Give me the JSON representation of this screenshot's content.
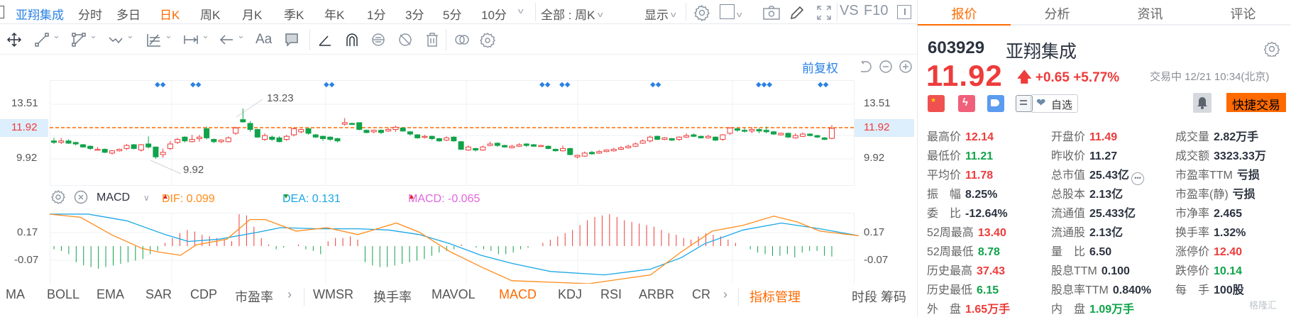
{
  "toolbar": {
    "stock_name": "亚翔集成",
    "periods": [
      "分时",
      "多日",
      "日K",
      "周K",
      "月K",
      "季K",
      "年K",
      "1分",
      "3分",
      "5分",
      "10分"
    ],
    "active_period": "日K",
    "range_selector": "全部 : 周K",
    "display_label": "显示",
    "vs_label": "VS",
    "f10_label": "F10"
  },
  "drawing_tools": [
    "move",
    "line-segment",
    "polyline",
    "wave",
    "fib-box",
    "range-measure",
    "arrow",
    "text",
    "comment",
    "angle",
    "arch",
    "sync",
    "hide",
    "delete",
    "compare",
    "settings"
  ],
  "chart": {
    "adjust_label": "前复权",
    "price_axis": {
      "top": "13.51",
      "current": "11.92",
      "bottom": "9.92"
    },
    "annotations": {
      "high": "13.23",
      "low": "9.92"
    },
    "current_price_color": "#ff6a00",
    "up_color": "#ee3b3b",
    "down_color": "#10a34a",
    "macd": {
      "name": "MACD",
      "dif_label": "DIF: 0.099",
      "dea_label": "DEA: 0.131",
      "macd_label": "MACD: -0.065",
      "axis": {
        "top": "0.17",
        "bottom": "-0.07"
      },
      "dif_color": "#ff8c1a",
      "dea_color": "#1aa7e6",
      "macd_color": "#e066dd"
    }
  },
  "indicators": {
    "main": [
      "MA",
      "BOLL",
      "EMA",
      "SAR",
      "CDP",
      "市盈率"
    ],
    "sub": [
      "WMSR",
      "换手率",
      "MAVOL",
      "MACD",
      "KDJ",
      "RSI",
      "ARBR",
      "CR"
    ],
    "active": "MACD",
    "manage_label": "指标管理",
    "extra": "时段 筹码"
  },
  "panel": {
    "tabs": [
      "报价",
      "分析",
      "资讯",
      "评论"
    ],
    "active_tab": "报价",
    "code": "603929",
    "name": "亚翔集成",
    "price": "11.92",
    "change": "+0.65 +5.77%",
    "status": "交易中 12/21 10:34(北京)",
    "watch_label": "自选",
    "quick_trade_label": "快捷交易",
    "quotes": [
      [
        {
          "label": "最高价",
          "value": "12.14",
          "color": "red"
        },
        {
          "label": "开盘价",
          "value": "11.49",
          "color": "red"
        },
        {
          "label": "成交量",
          "value": "2.82万手",
          "color": "dark"
        }
      ],
      [
        {
          "label": "最低价",
          "value": "11.21",
          "color": "green"
        },
        {
          "label": "昨收价",
          "value": "11.27",
          "color": "dark"
        },
        {
          "label": "成交额",
          "value": "3323.33万",
          "color": "dark"
        }
      ],
      [
        {
          "label": "平均价",
          "value": "11.78",
          "color": "red"
        },
        {
          "label": "总市值",
          "value": "25.43亿",
          "color": "dark"
        },
        {
          "label": "市盈率TTM",
          "value": "亏损",
          "color": "dark"
        }
      ],
      [
        {
          "label": "振　幅",
          "value": "8.25%",
          "color": "dark"
        },
        {
          "label": "总股本",
          "value": "2.13亿",
          "color": "dark"
        },
        {
          "label": "市盈率(静)",
          "value": "亏损",
          "color": "dark"
        }
      ],
      [
        {
          "label": "委　比",
          "value": "-12.64%",
          "color": "dark"
        },
        {
          "label": "流通值",
          "value": "25.433亿",
          "color": "dark"
        },
        {
          "label": "市净率",
          "value": "2.465",
          "color": "dark"
        }
      ],
      [
        {
          "label": "52周最高",
          "value": "13.40",
          "color": "red"
        },
        {
          "label": "流通股",
          "value": "2.13亿",
          "color": "dark"
        },
        {
          "label": "换手率",
          "value": "1.32%",
          "color": "dark"
        }
      ],
      [
        {
          "label": "52周最低",
          "value": "8.78",
          "color": "green"
        },
        {
          "label": "量　比",
          "value": "6.50",
          "color": "dark"
        },
        {
          "label": "涨停价",
          "value": "12.40",
          "color": "red"
        }
      ],
      [
        {
          "label": "历史最高",
          "value": "37.43",
          "color": "red"
        },
        {
          "label": "股息TTM",
          "value": "0.100",
          "color": "dark"
        },
        {
          "label": "跌停价",
          "value": "10.14",
          "color": "green"
        }
      ],
      [
        {
          "label": "历史最低",
          "value": "6.15",
          "color": "green"
        },
        {
          "label": "股息率TTM",
          "value": "0.840%",
          "color": "dark"
        },
        {
          "label": "每　手",
          "value": "100股",
          "color": "dark"
        }
      ],
      [
        {
          "label": "外　盘",
          "value": "1.65万手",
          "color": "red"
        },
        {
          "label": "内　盘",
          "value": "1.09万手",
          "color": "green"
        }
      ]
    ],
    "watermark": "格隆汇"
  }
}
